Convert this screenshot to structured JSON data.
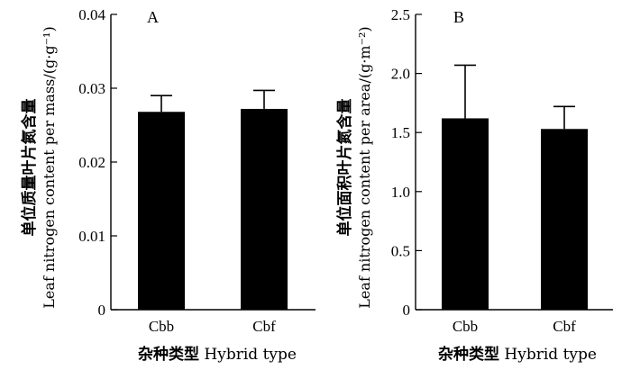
{
  "chart_data": [
    {
      "type": "bar",
      "panel_label": "A",
      "categories": [
        "Cbb",
        "Cbf"
      ],
      "values": [
        0.0268,
        0.0272
      ],
      "error_upper": [
        0.029,
        0.0297
      ],
      "ylim": [
        0,
        0.04
      ],
      "yticks": [
        "0",
        "0.01",
        "0.02",
        "0.03",
        "0.04"
      ],
      "ylabel_cn": "单位质量叶片氮含量",
      "ylabel_en": "Leaf nitrogen content per mass/(g·g⁻¹)",
      "xlabel_cn": "杂种类型",
      "xlabel_en": "Hybrid type",
      "bar_color": "#000000"
    },
    {
      "type": "bar",
      "panel_label": "B",
      "categories": [
        "Cbb",
        "Cbf"
      ],
      "values": [
        1.62,
        1.53
      ],
      "error_upper": [
        2.07,
        1.72
      ],
      "ylim": [
        0,
        2.5
      ],
      "yticks": [
        "0",
        "0.5",
        "1.0",
        "1.5",
        "2.0",
        "2.5"
      ],
      "ylabel_cn": "单位面积叶片氮含量",
      "ylabel_en": "Leaf nitrogen content per area/(g·m⁻²)",
      "xlabel_cn": "杂种类型",
      "xlabel_en": "Hybrid type",
      "bar_color": "#000000"
    }
  ]
}
